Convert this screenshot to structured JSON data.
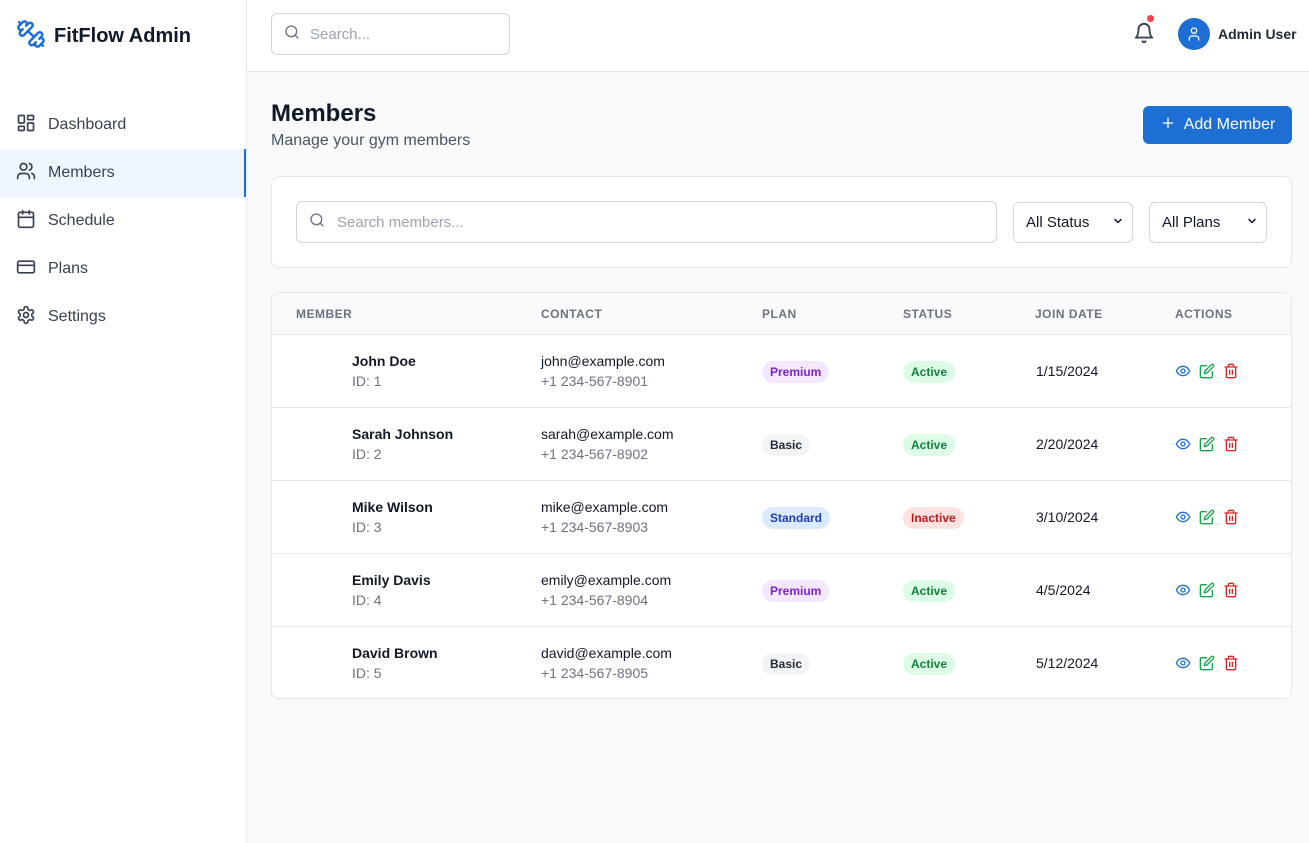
{
  "app": {
    "title": "FitFlow Admin"
  },
  "sidebar": {
    "items": [
      {
        "label": "Dashboard",
        "icon": "dashboard-grid-icon",
        "active": false
      },
      {
        "label": "Members",
        "icon": "users-icon",
        "active": true
      },
      {
        "label": "Schedule",
        "icon": "calendar-icon",
        "active": false
      },
      {
        "label": "Plans",
        "icon": "credit-card-icon",
        "active": false
      },
      {
        "label": "Settings",
        "icon": "gear-icon",
        "active": false
      }
    ]
  },
  "header": {
    "search_placeholder": "Search...",
    "user_name": "Admin User",
    "notification_indicator": true
  },
  "page": {
    "title": "Members",
    "subtitle": "Manage your gym members",
    "add_button_label": "Add Member"
  },
  "filters": {
    "search_placeholder": "Search members...",
    "status_select": "All Status",
    "plan_select": "All Plans"
  },
  "table": {
    "columns": [
      "MEMBER",
      "CONTACT",
      "PLAN",
      "STATUS",
      "JOIN DATE",
      "ACTIONS"
    ],
    "rows": [
      {
        "name": "John Doe",
        "id": "ID: 1",
        "email": "john@example.com",
        "phone": "+1 234-567-8901",
        "plan": "Premium",
        "status": "Active",
        "join_date": "1/15/2024"
      },
      {
        "name": "Sarah Johnson",
        "id": "ID: 2",
        "email": "sarah@example.com",
        "phone": "+1 234-567-8902",
        "plan": "Basic",
        "status": "Active",
        "join_date": "2/20/2024"
      },
      {
        "name": "Mike Wilson",
        "id": "ID: 3",
        "email": "mike@example.com",
        "phone": "+1 234-567-8903",
        "plan": "Standard",
        "status": "Inactive",
        "join_date": "3/10/2024"
      },
      {
        "name": "Emily Davis",
        "id": "ID: 4",
        "email": "emily@example.com",
        "phone": "+1 234-567-8904",
        "plan": "Premium",
        "status": "Active",
        "join_date": "4/5/2024"
      },
      {
        "name": "David Brown",
        "id": "ID: 5",
        "email": "david@example.com",
        "phone": "+1 234-567-8905",
        "plan": "Basic",
        "status": "Active",
        "join_date": "5/12/2024"
      }
    ]
  },
  "colors": {
    "accent": "#1d6fd6",
    "notification_dot": "#ef4444",
    "view_icon": "#1d6fd6",
    "edit_icon": "#16a34a",
    "delete_icon": "#dc2626"
  }
}
